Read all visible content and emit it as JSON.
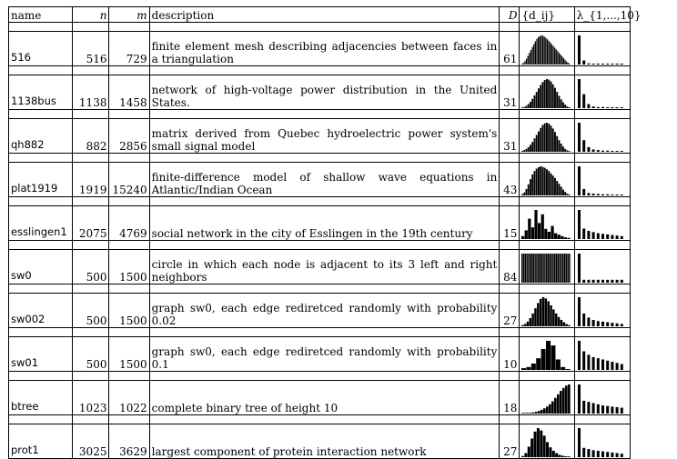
{
  "table": {
    "headers": {
      "name": "name",
      "n": "n",
      "m": "m",
      "description": "description",
      "D": "D",
      "dij": "{d_ij}",
      "lambda": "λ_{1,...,10}"
    },
    "rows": [
      {
        "name": "516",
        "n": "516",
        "m": "729",
        "description": "finite element mesh describing adjacencies between faces in a triangulation",
        "D": "61",
        "dij": [
          2,
          6,
          12,
          20,
          30,
          40,
          50,
          60,
          70,
          80,
          88,
          94,
          98,
          100,
          99,
          96,
          92,
          87,
          82,
          76,
          70,
          64,
          58,
          52,
          46,
          40,
          34,
          28,
          22,
          16,
          10,
          6,
          3
        ],
        "lambda": [
          100,
          14,
          4,
          3,
          3,
          3,
          2,
          2,
          2,
          2
        ]
      },
      {
        "name": "1138bus",
        "n": "1138",
        "m": "1458",
        "description": "network of high-voltage power distribution in the United States.",
        "D": "31",
        "dij": [
          2,
          4,
          8,
          14,
          22,
          32,
          44,
          56,
          68,
          80,
          90,
          97,
          100,
          98,
          92,
          82,
          70,
          56,
          42,
          30,
          20,
          12,
          6,
          3
        ],
        "lambda": [
          100,
          48,
          14,
          6,
          4,
          4,
          3,
          3,
          3,
          2
        ]
      },
      {
        "name": "qh882",
        "n": "882",
        "m": "2856",
        "description": "matrix derived from Quebec hydroelectric power system's small signal model",
        "D": "31",
        "dij": [
          3,
          6,
          10,
          16,
          24,
          34,
          46,
          58,
          70,
          82,
          92,
          98,
          100,
          97,
          90,
          80,
          68,
          54,
          40,
          28,
          18,
          10,
          5,
          2
        ],
        "lambda": [
          100,
          40,
          16,
          8,
          6,
          4,
          4,
          3,
          3,
          3
        ]
      },
      {
        "name": "plat1919",
        "n": "1919",
        "m": "15240",
        "description": "finite-difference model of shallow wave equations in Atlantic/Indian Ocean",
        "D": "43",
        "dij": [
          4,
          10,
          22,
          38,
          56,
          72,
          84,
          92,
          97,
          100,
          98,
          95,
          90,
          84,
          76,
          68,
          60,
          50,
          40,
          30,
          20,
          12,
          6,
          3
        ],
        "lambda": [
          100,
          22,
          8,
          6,
          5,
          4,
          4,
          3,
          3,
          3
        ]
      },
      {
        "name": "esslingen1",
        "n": "2075",
        "m": "4769",
        "description": "social network in the city of Esslingen in the 19th century",
        "D": "15",
        "dij": [
          10,
          30,
          70,
          40,
          100,
          55,
          85,
          35,
          25,
          45,
          20,
          15,
          10,
          6,
          4
        ],
        "lambda": [
          100,
          36,
          28,
          24,
          20,
          18,
          16,
          14,
          12,
          10
        ]
      },
      {
        "name": "sw0",
        "n": "500",
        "m": "1500",
        "description": "circle in which each node is adjacent to its 3 left and right neighbors",
        "D": "84",
        "dij": [
          100,
          100,
          100,
          100,
          100,
          100,
          100,
          100,
          100,
          100,
          100,
          100,
          100,
          100,
          100,
          100,
          100,
          100,
          100,
          100,
          100,
          100,
          100,
          100,
          100,
          100,
          100,
          100,
          100,
          100
        ],
        "lambda": [
          100,
          10,
          10,
          10,
          10,
          10,
          10,
          10,
          10,
          10
        ]
      },
      {
        "name": "sw002",
        "n": "500",
        "m": "1500",
        "description": "graph sw0, each edge rediretced randomly with probability 0.02",
        "D": "27",
        "dij": [
          4,
          8,
          16,
          28,
          44,
          62,
          80,
          94,
          100,
          96,
          86,
          72,
          58,
          44,
          32,
          22,
          14,
          8,
          4
        ],
        "lambda": [
          100,
          44,
          30,
          22,
          18,
          16,
          14,
          12,
          10,
          8
        ]
      },
      {
        "name": "sw01",
        "n": "500",
        "m": "1500",
        "description": "graph sw0, each edge rediretced randomly with probability 0.1",
        "D": "10",
        "dij": [
          6,
          10,
          22,
          40,
          72,
          100,
          84,
          36,
          10,
          3
        ],
        "lambda": [
          100,
          64,
          52,
          44,
          40,
          36,
          32,
          28,
          24,
          20
        ]
      },
      {
        "name": "btree",
        "n": "1023",
        "m": "1022",
        "description": "complete binary tree of height 10",
        "D": "18",
        "dij": [
          1,
          1,
          2,
          3,
          4,
          6,
          9,
          13,
          18,
          24,
          32,
          42,
          54,
          66,
          78,
          88,
          96,
          100
        ],
        "lambda": [
          100,
          44,
          40,
          36,
          32,
          28,
          26,
          24,
          22,
          20
        ]
      },
      {
        "name": "prot1",
        "n": "3025",
        "m": "3629",
        "description": "largest component of protein interaction network",
        "D": "27",
        "dij": [
          4,
          14,
          36,
          64,
          88,
          100,
          92,
          74,
          52,
          34,
          22,
          14,
          8,
          5,
          3,
          2
        ],
        "lambda": [
          100,
          32,
          28,
          24,
          22,
          20,
          18,
          16,
          14,
          12
        ]
      }
    ]
  }
}
